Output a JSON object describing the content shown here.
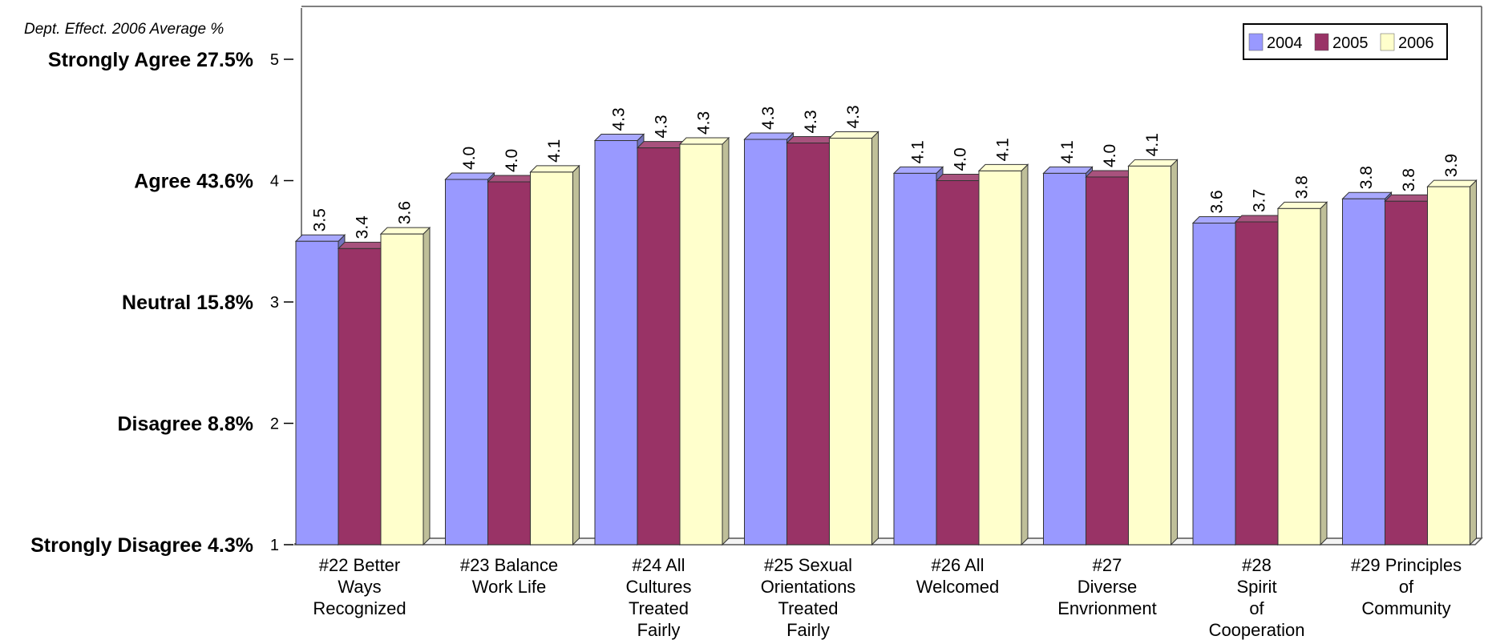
{
  "chart_data": {
    "type": "bar",
    "subtitle": "Dept. Effect. 2006 Average %",
    "categories": [
      [
        "#22 Better",
        "Ways",
        "Recognized"
      ],
      [
        "#23 Balance",
        "Work Life"
      ],
      [
        "#24 All",
        "Cultures",
        "Treated",
        "Fairly"
      ],
      [
        "#25 Sexual",
        "Orientations",
        "Treated",
        "Fairly"
      ],
      [
        "#26 All",
        "Welcomed"
      ],
      [
        "#27",
        "Diverse",
        "Envrionment"
      ],
      [
        "#28",
        "Spirit",
        "of",
        "Cooperation"
      ],
      [
        "#29 Principles",
        "of",
        "Community"
      ]
    ],
    "series": [
      {
        "name": "2004",
        "color": "#9999ff",
        "values": [
          3.5,
          4.0,
          4.3,
          4.3,
          4.1,
          4.1,
          3.6,
          3.8
        ],
        "exact": [
          3.5,
          4.01,
          4.33,
          4.34,
          4.06,
          4.06,
          3.65,
          3.85
        ]
      },
      {
        "name": "2005",
        "color": "#993366",
        "values": [
          3.4,
          4.0,
          4.3,
          4.3,
          4.0,
          4.0,
          3.7,
          3.8
        ],
        "exact": [
          3.44,
          3.99,
          4.27,
          4.31,
          4.0,
          4.03,
          3.66,
          3.83
        ]
      },
      {
        "name": "2006",
        "color": "#ffffcc",
        "values": [
          3.6,
          4.1,
          4.3,
          4.3,
          4.1,
          4.1,
          3.8,
          3.9
        ],
        "exact": [
          3.56,
          4.07,
          4.3,
          4.35,
          4.08,
          4.12,
          3.77,
          3.95
        ]
      }
    ],
    "ylim": [
      1,
      5
    ],
    "yticks": [
      1,
      2,
      3,
      4,
      5
    ],
    "scale_labels": [
      {
        "value": 5,
        "label": "Strongly Agree",
        "pct": "27.5%"
      },
      {
        "value": 4,
        "label": "Agree",
        "pct": "43.6%"
      },
      {
        "value": 3,
        "label": "Neutral",
        "pct": "15.8%"
      },
      {
        "value": 2,
        "label": "Disagree",
        "pct": "8.8%"
      },
      {
        "value": 1,
        "label": "Strongly Disagree",
        "pct": "4.3%"
      }
    ],
    "legend_position": "top-right",
    "grid": false
  }
}
